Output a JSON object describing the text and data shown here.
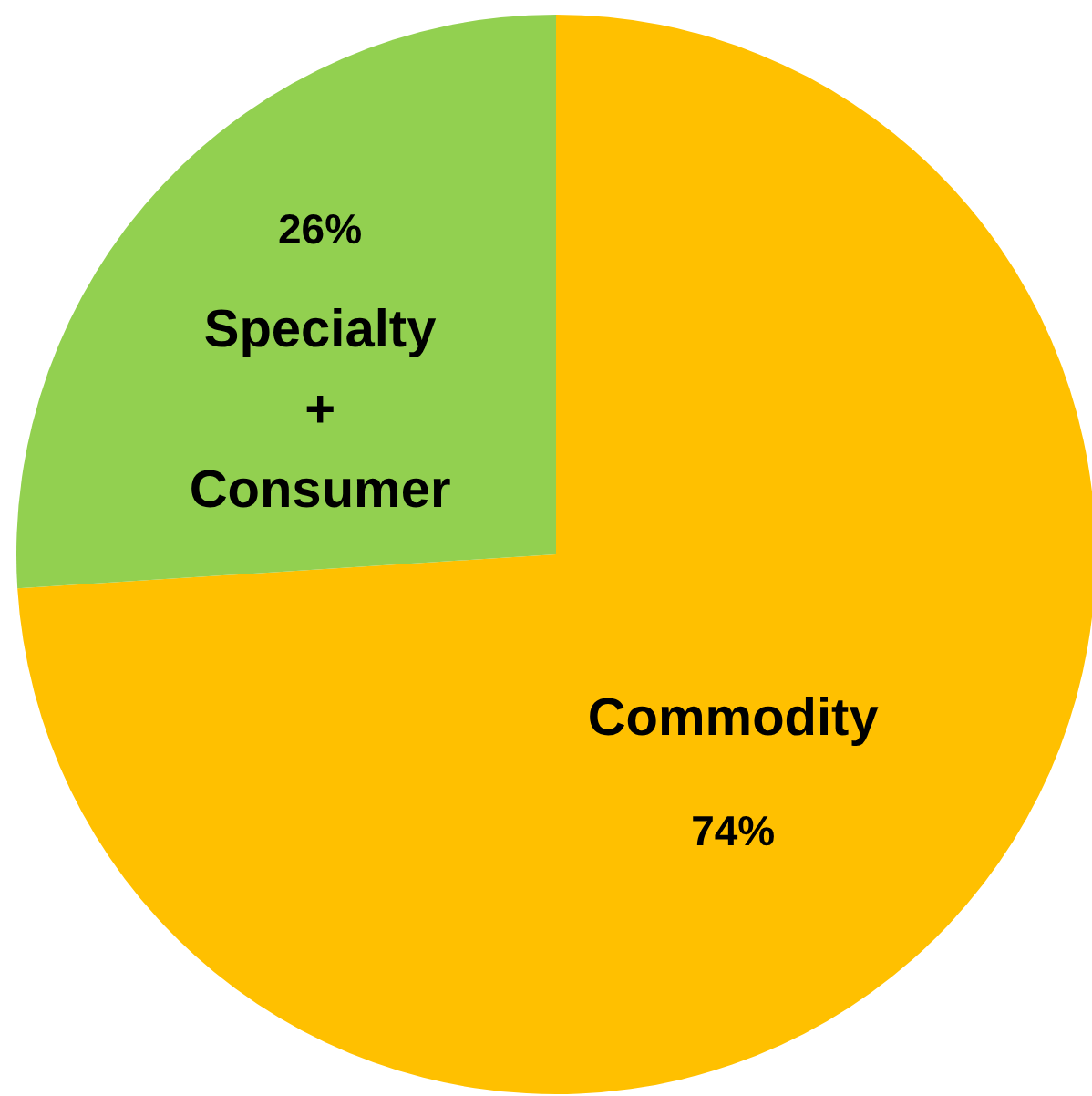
{
  "chart_data": {
    "type": "pie",
    "categories": [
      "Commodity",
      "Specialty + Consumer"
    ],
    "values": [
      74,
      26
    ],
    "colors": [
      "#ffc000",
      "#92d050"
    ],
    "value_labels": [
      "74%",
      "26%"
    ]
  }
}
